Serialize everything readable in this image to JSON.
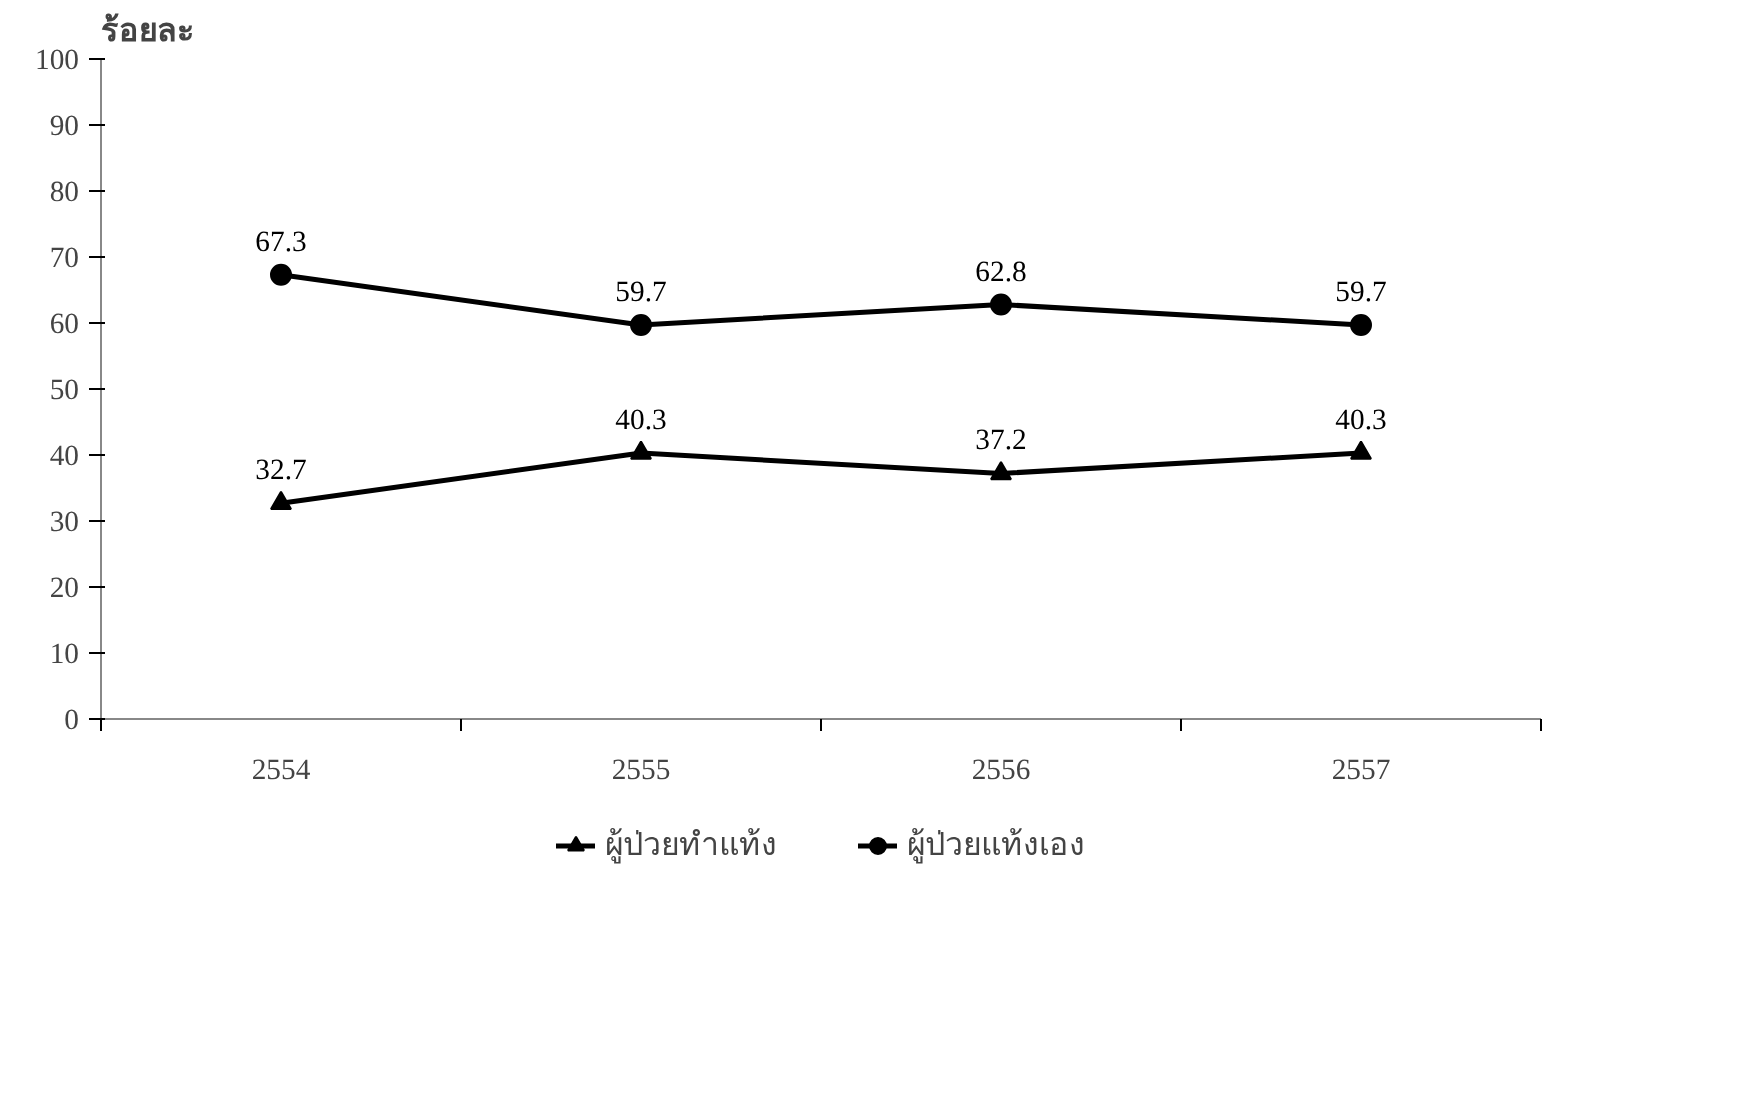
{
  "chart_data": {
    "type": "line",
    "ylabel": "ร้อยละ",
    "categories": [
      "2554",
      "2555",
      "2556",
      "2557"
    ],
    "series": [
      {
        "name": "ผู้ป่วยทำแท้ง",
        "color": "#000000",
        "marker": "triangle",
        "values": [
          32.7,
          40.3,
          37.2,
          40.3
        ]
      },
      {
        "name": "ผู้ป่วยแท้งเอง",
        "color": "#000000",
        "marker": "circle",
        "values": [
          67.3,
          59.7,
          62.8,
          59.7
        ]
      }
    ],
    "ylim": [
      0,
      100
    ],
    "yticks": [
      0,
      10,
      20,
      30,
      40,
      50,
      60,
      70,
      80,
      90,
      100
    ],
    "grid": false,
    "legend": "bottom",
    "data_labels": true,
    "line_style": "solid"
  }
}
